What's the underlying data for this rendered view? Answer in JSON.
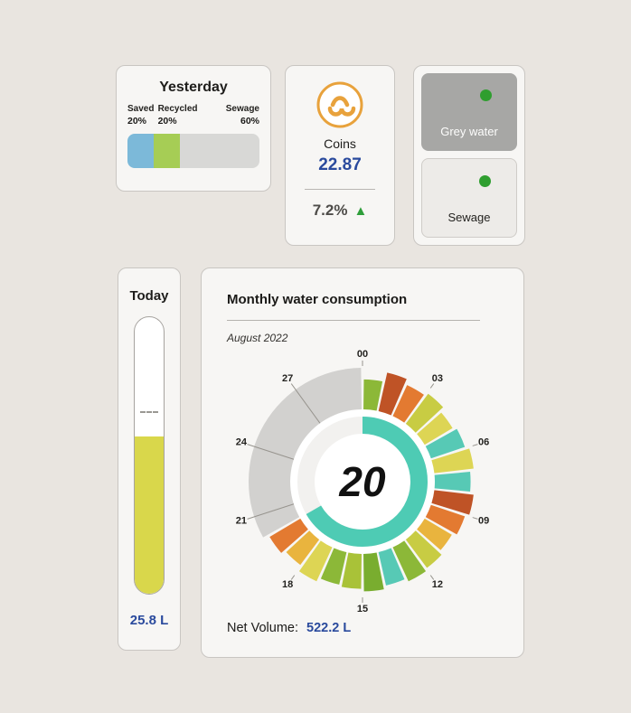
{
  "page": {
    "background": "#e9e5e0",
    "accent_blue": "#2a4a9d",
    "accent_green": "#2f9e2f"
  },
  "yesterday_card": {
    "title": "Yesterday",
    "segments": [
      {
        "label": "Saved",
        "pct_label": "20%",
        "value": 20,
        "color": "#7cb9d9"
      },
      {
        "label": "Recycled",
        "pct_label": "20%",
        "value": 20,
        "color": "#a6cd55"
      },
      {
        "label": "Sewage",
        "pct_label": "60%",
        "value": 60,
        "color": "#d8d8d6"
      }
    ]
  },
  "coins_card": {
    "title": "Coins",
    "value": "22.87",
    "change_pct": "7.2%",
    "trend": "up",
    "trend_icon": "▲",
    "value_color": "#2a4a9d",
    "trend_color": "#2f9e3a"
  },
  "water_type_card": {
    "buttons": [
      {
        "label": "Grey water",
        "selected": true,
        "indicator_color": "#2f9e2f"
      },
      {
        "label": "Sewage",
        "selected": false,
        "indicator_color": "#2f9e2f"
      }
    ]
  },
  "today_card": {
    "title": "Today",
    "value": "25.8 L",
    "fill_percent": 57,
    "marker_percent_from_top": 34,
    "fill_color": "#d9d74b",
    "value_color": "#2a4a9d"
  },
  "monthly_card": {
    "title": "Monthly water consumption",
    "subtitle": "August 2022",
    "net_volume_label": "Net Volume:",
    "net_volume_value": "522.2 L",
    "net_volume_color": "#2a4a9d"
  },
  "chart_data": {
    "type": "polar-rose",
    "title": "Monthly water consumption",
    "period": "August 2022",
    "days_in_month": 30,
    "current_day": 20,
    "center_label": "20",
    "tick_labels": [
      "00",
      "03",
      "06",
      "09",
      "12",
      "15",
      "18",
      "21",
      "24",
      "27"
    ],
    "tick_step": 3,
    "ring_color": "#4ecbb4",
    "ring_track_color": "#f2f1ef",
    "future_color": "#d2d1cf",
    "segments": [
      {
        "day": 0,
        "value": 0.72,
        "color": "#8cb838"
      },
      {
        "day": 1,
        "value": 0.95,
        "color": "#bf5326"
      },
      {
        "day": 2,
        "value": 0.82,
        "color": "#e37a31"
      },
      {
        "day": 3,
        "value": 0.9,
        "color": "#c8cc43"
      },
      {
        "day": 4,
        "value": 0.78,
        "color": "#ddd554"
      },
      {
        "day": 5,
        "value": 0.86,
        "color": "#57c9b5"
      },
      {
        "day": 6,
        "value": 0.95,
        "color": "#ddd554"
      },
      {
        "day": 7,
        "value": 0.86,
        "color": "#57c9b5"
      },
      {
        "day": 8,
        "value": 0.95,
        "color": "#bf5326"
      },
      {
        "day": 9,
        "value": 0.86,
        "color": "#e37a31"
      },
      {
        "day": 10,
        "value": 0.76,
        "color": "#e9b43e"
      },
      {
        "day": 11,
        "value": 0.85,
        "color": "#c8cc43"
      },
      {
        "day": 12,
        "value": 0.9,
        "color": "#8cb838"
      },
      {
        "day": 13,
        "value": 0.82,
        "color": "#57c9b5"
      },
      {
        "day": 14,
        "value": 0.9,
        "color": "#79ad2f"
      },
      {
        "day": 15,
        "value": 0.84,
        "color": "#a9c238"
      },
      {
        "day": 16,
        "value": 0.8,
        "color": "#8cb838"
      },
      {
        "day": 17,
        "value": 0.9,
        "color": "#ddd554"
      },
      {
        "day": 18,
        "value": 0.76,
        "color": "#e9b43e"
      },
      {
        "day": 19,
        "value": 0.86,
        "color": "#e37a31"
      }
    ]
  }
}
